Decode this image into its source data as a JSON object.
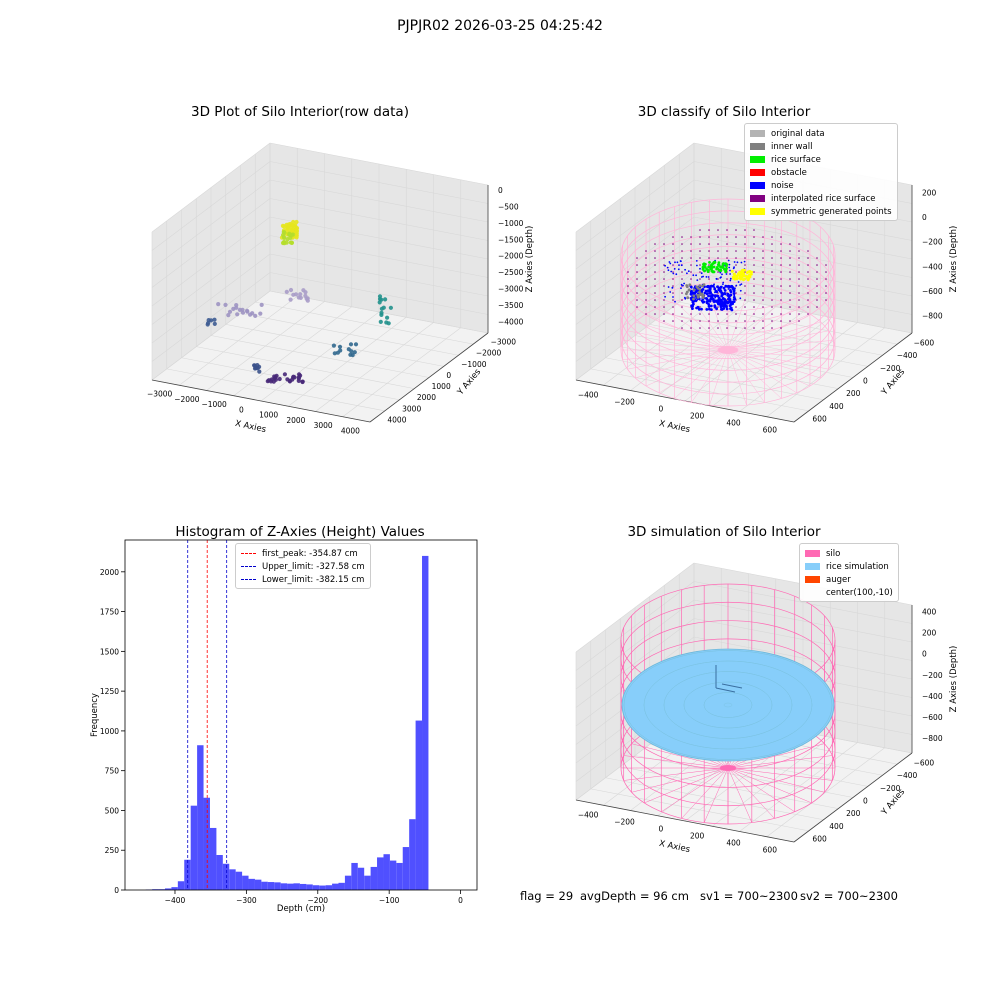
{
  "page": {
    "suptitle": "PJPJR02 2026-03-25 04:25:42",
    "footer": {
      "flag": "flag = 29",
      "avg_depth": "avgDepth = 96 cm",
      "sv1": "sv1 = 700~2300",
      "sv2": "sv2 = 700~2300"
    }
  },
  "colors": {
    "hist_bar": "#5050ff",
    "first_peak": "#ff0000",
    "limits": "#0000cc",
    "silo": "#ff69b4",
    "rice": "#87cefa",
    "auger": "#ff4500"
  },
  "chart_data": [
    {
      "type": "scatter",
      "title": "3D Plot of Silo Interior(row data)",
      "xlabel": "X Axies",
      "ylabel": "Y Axies",
      "zlabel": "Z Axies (Depth)",
      "x_ticks": [
        "−3000",
        "−2000",
        "−1000",
        "0",
        "1000",
        "2000",
        "3000",
        "4000"
      ],
      "y_ticks": [
        "−3000",
        "−2000",
        "−1000",
        "0",
        "1000",
        "2000",
        "3000",
        "4000"
      ],
      "z_ticks": [
        "0",
        "−500",
        "−1000",
        "−1500",
        "−2000",
        "−2500",
        "−3000",
        "−3500",
        "−4000"
      ],
      "xlim": [
        -3500,
        4500
      ],
      "ylim": [
        -3500,
        4500
      ],
      "zlim": [
        -4200,
        200
      ],
      "colormap": "viridis"
    },
    {
      "type": "scatter",
      "title": "3D classify of Silo Interior",
      "xlabel": "X Axies",
      "ylabel": "Y Axies",
      "zlabel": "Z Axies (Depth)",
      "x_ticks": [
        "−400",
        "−200",
        "0",
        "200",
        "400",
        "600"
      ],
      "y_ticks": [
        "−600",
        "−400",
        "−200",
        "0",
        "200",
        "400",
        "600"
      ],
      "z_ticks": [
        "200",
        "0",
        "−200",
        "−400",
        "−600",
        "−800"
      ],
      "xlim": [
        -560,
        760
      ],
      "ylim": [
        -660,
        660
      ],
      "zlim": [
        -900,
        300
      ],
      "legend": [
        {
          "label": "original data",
          "color": "#b3b3b3"
        },
        {
          "label": "inner wall",
          "color": "#808080"
        },
        {
          "label": "rice surface",
          "color": "#00ee00"
        },
        {
          "label": "obstacle",
          "color": "#ff0000"
        },
        {
          "label": "noise",
          "color": "#0000ff"
        },
        {
          "label": "interpolated rice surface",
          "color": "#800080"
        },
        {
          "label": "symmetric generated points",
          "color": "#ffff00"
        }
      ]
    },
    {
      "type": "bar",
      "title": "Histogram of Z-Axies (Height) Values",
      "xlabel": "Depth (cm)",
      "ylabel": "Frequency",
      "xlim": [
        -470,
        23
      ],
      "ylim": [
        0,
        2200
      ],
      "x_ticks": [
        -400,
        -300,
        -200,
        -100,
        0
      ],
      "y_ticks": [
        0,
        250,
        500,
        750,
        1000,
        1250,
        1500,
        1750,
        2000
      ],
      "bin_start": -441,
      "bin_width": 9,
      "values": [
        3,
        5,
        5,
        10,
        18,
        55,
        190,
        530,
        910,
        580,
        390,
        220,
        165,
        130,
        115,
        90,
        70,
        65,
        52,
        50,
        48,
        42,
        40,
        42,
        38,
        35,
        30,
        28,
        30,
        40,
        45,
        90,
        170,
        140,
        90,
        145,
        205,
        225,
        185,
        170,
        270,
        445,
        1065,
        2100
      ],
      "lines": [
        {
          "label": "first_peak: -354.87 cm",
          "x": -354.87,
          "color": "#ff0000"
        },
        {
          "label": "Upper_limit: -327.58 cm",
          "x": -327.58,
          "color": "#0000cc"
        },
        {
          "label": "Lower_limit: -382.15 cm",
          "x": -382.15,
          "color": "#0000cc"
        }
      ]
    },
    {
      "type": "area",
      "title": "3D simulation of Silo Interior",
      "xlabel": "X Axies",
      "ylabel": "Y Axies",
      "zlabel": "Z Axies (Depth)",
      "x_ticks": [
        "−400",
        "−200",
        "0",
        "200",
        "400",
        "600"
      ],
      "y_ticks": [
        "−600",
        "−400",
        "−200",
        "0",
        "200",
        "400",
        "600"
      ],
      "z_ticks": [
        "400",
        "200",
        "0",
        "−200",
        "−400",
        "−600",
        "−800"
      ],
      "legend": [
        {
          "label": "silo",
          "color": "#ff69b4"
        },
        {
          "label": "rice simulation",
          "color": "#87cefa"
        },
        {
          "label": "auger",
          "color": "#ff4500"
        },
        {
          "label": "center(100,-10)",
          "color": ""
        }
      ]
    }
  ]
}
